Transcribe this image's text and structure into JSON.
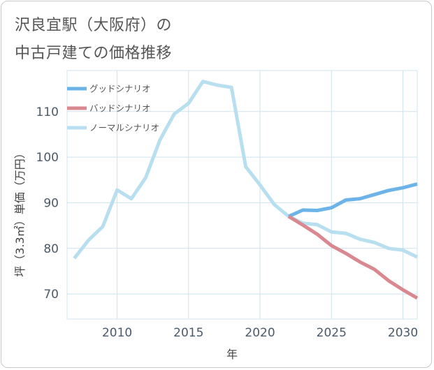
{
  "title": {
    "line1": "沢良宜駅（大阪府）の",
    "line2": "中古戸建ての価格推移"
  },
  "chart_data": {
    "type": "line",
    "xlabel": "年",
    "ylabel": "坪（3.3㎡）単価（万円）",
    "xlim": [
      2006.5,
      2031
    ],
    "ylim": [
      64.5,
      119
    ],
    "xticks": [
      2010,
      2015,
      2020,
      2025,
      2030
    ],
    "yticks": [
      70,
      80,
      90,
      100,
      110
    ],
    "legend_position": "top-left",
    "series": [
      {
        "name": "グッドシナリオ",
        "color": "#6cb4e8",
        "x": [
          2022,
          2023,
          2024,
          2025,
          2026,
          2027,
          2028,
          2029,
          2030,
          2031
        ],
        "y": [
          87.0,
          88.4,
          88.3,
          88.9,
          90.6,
          90.9,
          91.8,
          92.7,
          93.3,
          94.1
        ]
      },
      {
        "name": "バッドシナリオ",
        "color": "#d98890",
        "x": [
          2022,
          2023,
          2024,
          2025,
          2026,
          2027,
          2028,
          2029,
          2030,
          2031
        ],
        "y": [
          87.0,
          85.1,
          83.1,
          80.6,
          78.9,
          77.0,
          75.4,
          72.9,
          70.9,
          69.1
        ]
      },
      {
        "name": "ノーマルシナリオ",
        "color": "#b8dff0",
        "x": [
          2007,
          2008,
          2009,
          2010,
          2011,
          2012,
          2013,
          2014,
          2015,
          2016,
          2017,
          2018,
          2019,
          2020,
          2021,
          2022,
          2023,
          2024,
          2025,
          2026,
          2027,
          2028,
          2029,
          2030,
          2031
        ],
        "y": [
          77.8,
          81.8,
          84.8,
          92.8,
          90.9,
          95.5,
          103.8,
          109.5,
          111.8,
          116.6,
          115.8,
          115.3,
          97.9,
          93.9,
          89.6,
          87.0,
          85.5,
          85.2,
          83.6,
          83.3,
          82.0,
          81.3,
          80.0,
          79.6,
          78.1
        ]
      }
    ]
  }
}
